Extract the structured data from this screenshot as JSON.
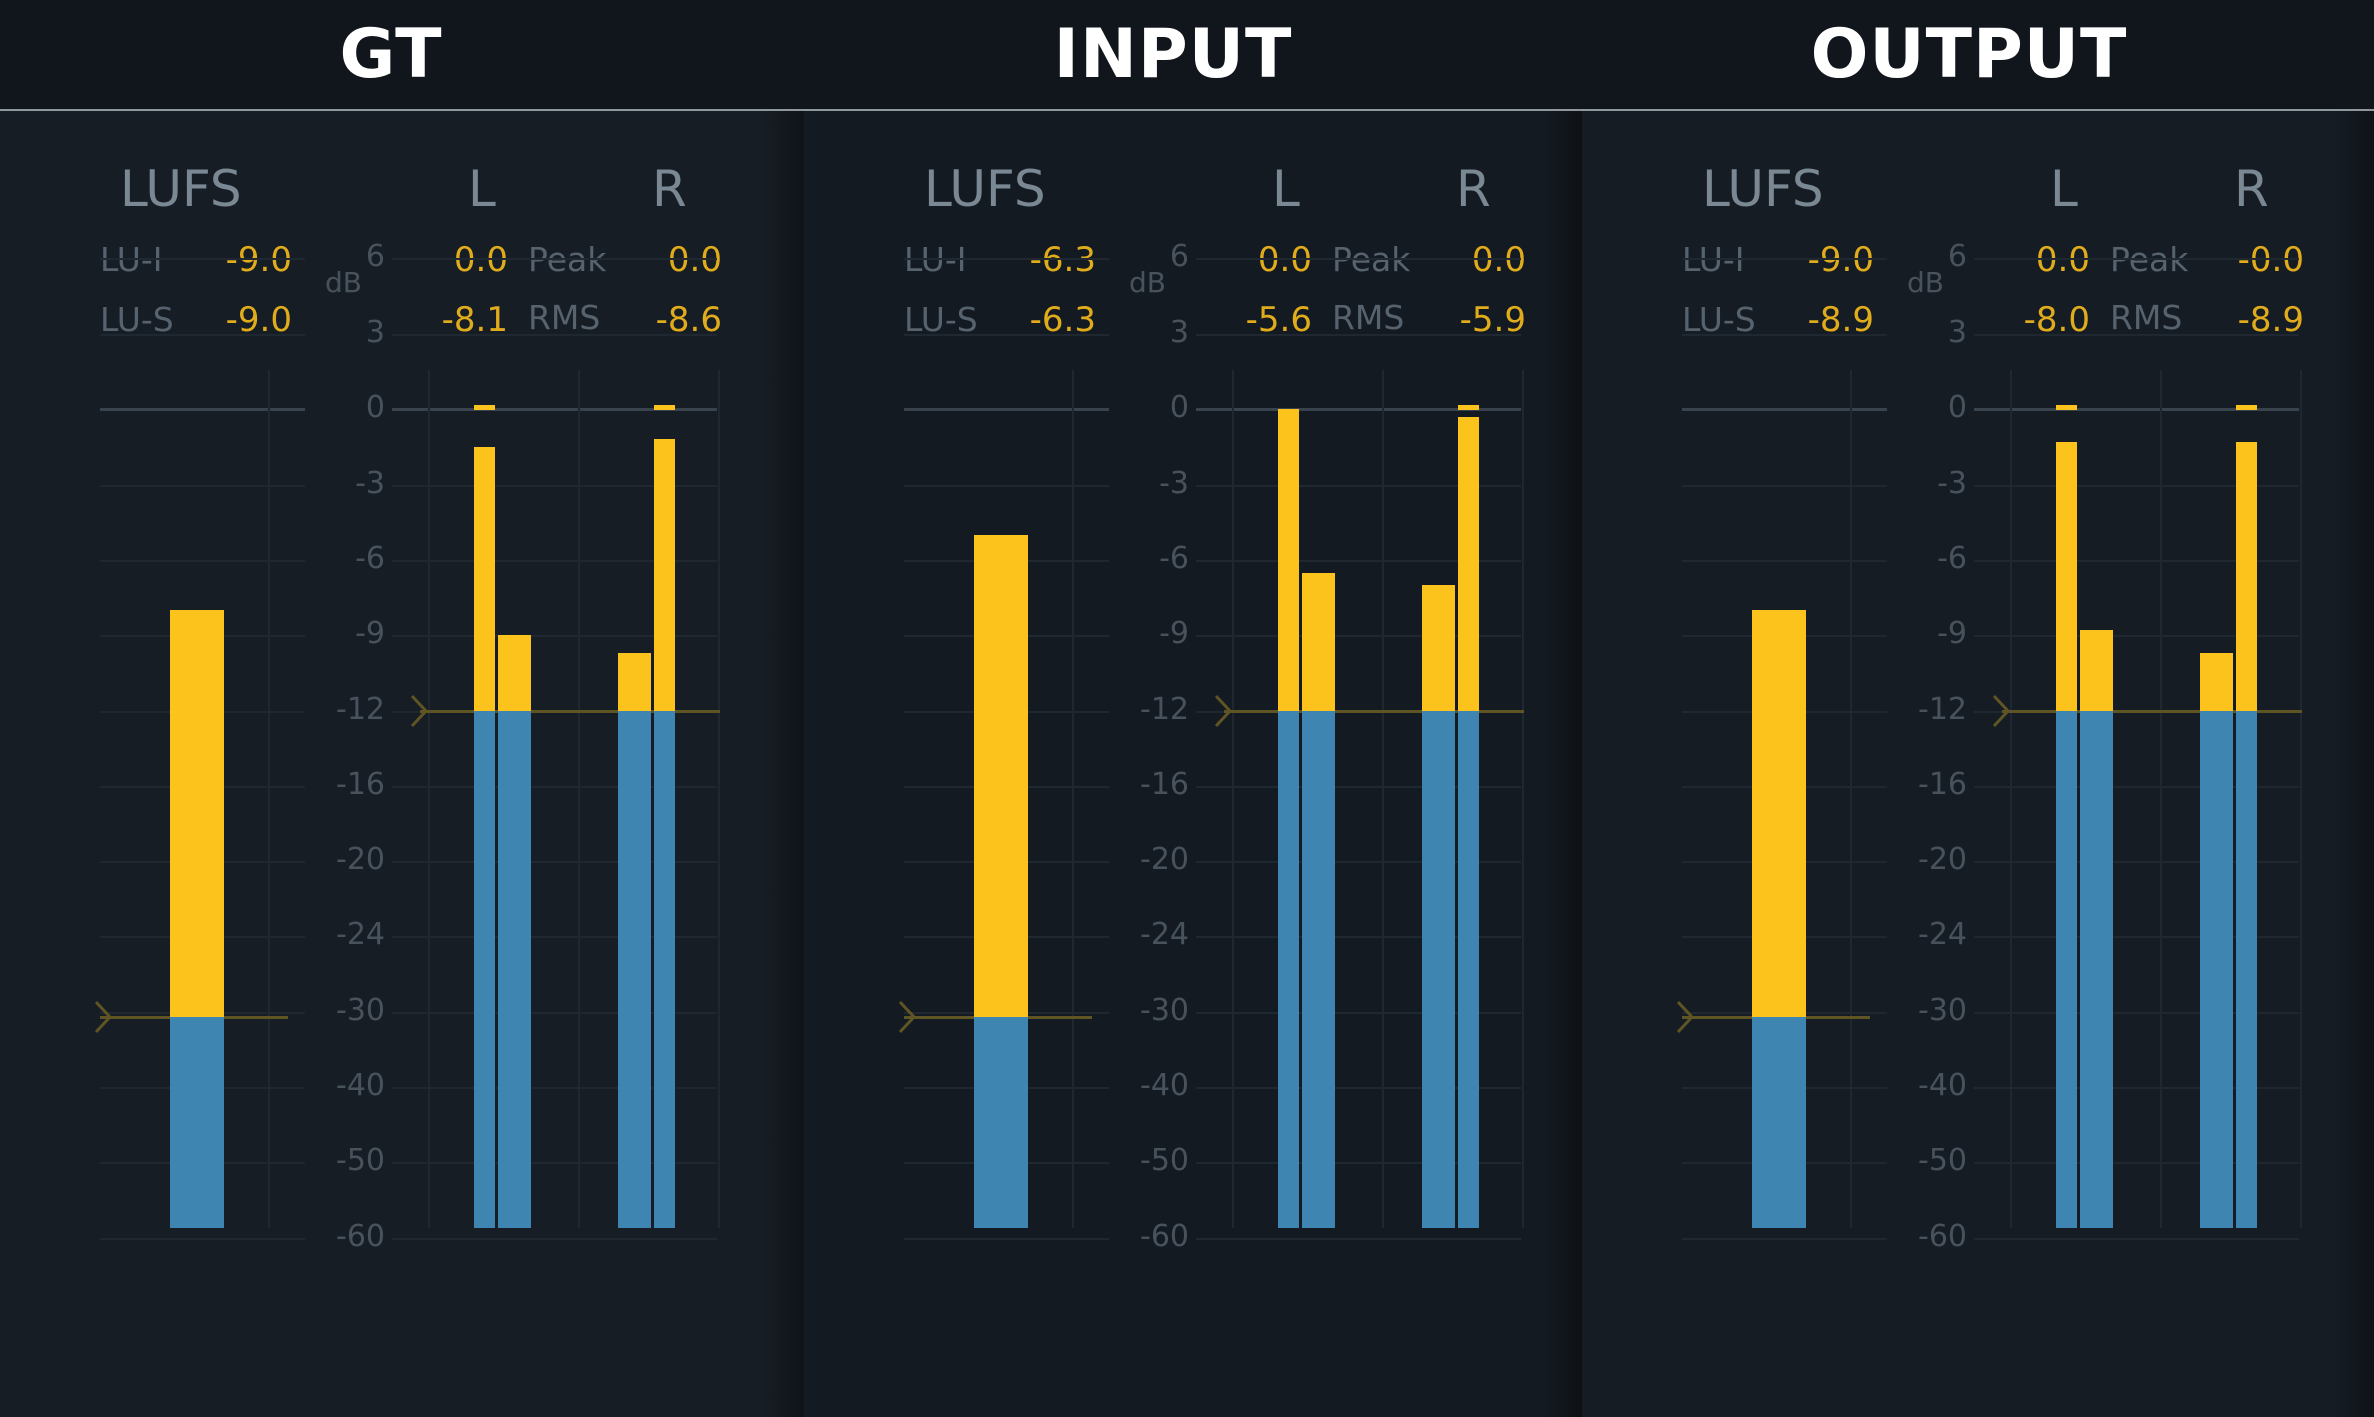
{
  "headers": {
    "gt": "GT",
    "input": "INPUT",
    "output": "OUTPUT"
  },
  "common": {
    "lufs_label": "LUFS",
    "left_label": "L",
    "right_label": "R",
    "lui_label": "LU-I",
    "lus_label": "LU-S",
    "peak_label": "Peak",
    "rms_label": "RMS",
    "db_unit": "dB",
    "ticks": [
      "6",
      "3",
      "0",
      "-3",
      "-6",
      "-9",
      "-12",
      "-16",
      "-20",
      "-24",
      "-30",
      "-40",
      "-50",
      "-60"
    ]
  },
  "panels": [
    {
      "id": "gt",
      "lu_i": "-9.0",
      "lu_s": "-9.0",
      "l_peak": "0.0",
      "r_peak": "0.0",
      "l_rms": "-8.1",
      "r_rms": "-8.6",
      "lufs_level_db": -8.0,
      "l_peak_bar_db": -1.5,
      "l_rms_bar_db": -9.0,
      "r_rms_bar_db": -9.7,
      "r_peak_bar_db": -1.2
    },
    {
      "id": "input",
      "lu_i": "-6.3",
      "lu_s": "-6.3",
      "l_peak": "0.0",
      "r_peak": "0.0",
      "l_rms": "-5.6",
      "r_rms": "-5.9",
      "lufs_level_db": -5.0,
      "l_peak_bar_db": 0.0,
      "l_rms_bar_db": -6.5,
      "r_rms_bar_db": -7.0,
      "r_peak_bar_db": -0.3
    },
    {
      "id": "output",
      "lu_i": "-9.0",
      "lu_s": "-8.9",
      "l_peak": "0.0",
      "r_peak": "-0.0",
      "l_rms": "-8.0",
      "r_rms": "-8.9",
      "lufs_level_db": -8.0,
      "l_peak_bar_db": -1.3,
      "l_rms_bar_db": -8.8,
      "r_rms_bar_db": -9.7,
      "r_peak_bar_db": -1.3
    }
  ],
  "colors": {
    "loud": "#fbc31c",
    "quiet": "#3e86b1",
    "target": "#5e5424",
    "bg": "#141a21"
  }
}
